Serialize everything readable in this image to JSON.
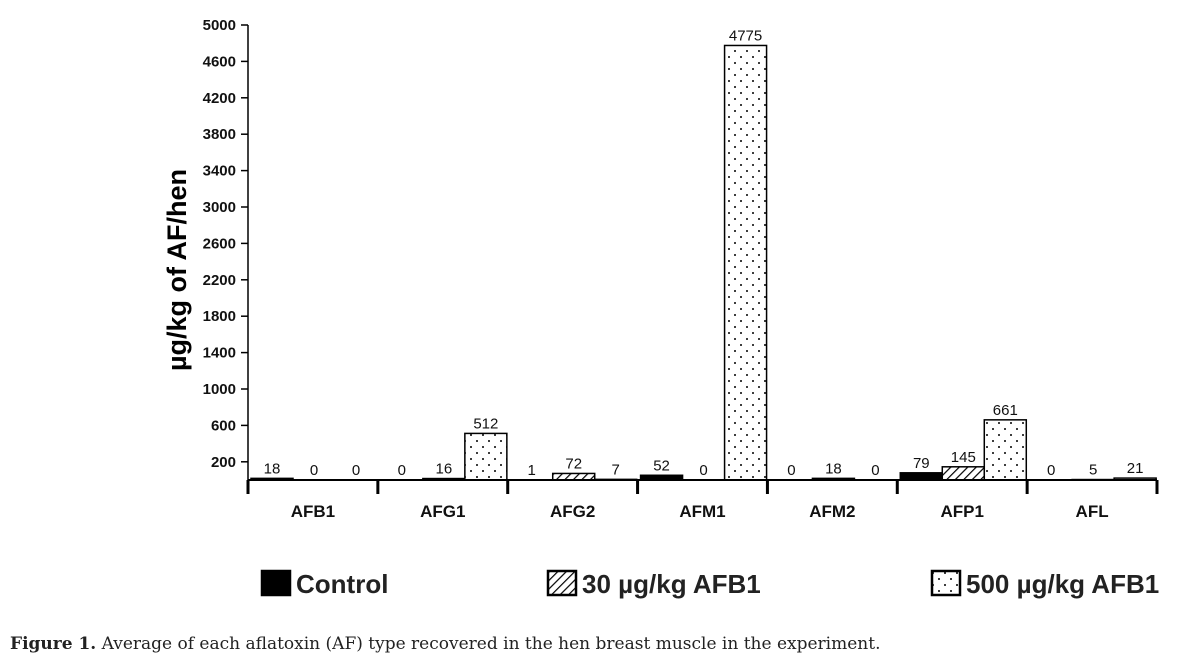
{
  "chart_data": {
    "type": "bar",
    "ylabel": "µg/kg of AF/hen",
    "xlabel": "",
    "ylim": [
      0,
      5000
    ],
    "yticks": [
      200,
      600,
      1000,
      1400,
      1800,
      2200,
      2600,
      3000,
      3400,
      3800,
      4200,
      4600,
      5000
    ],
    "categories": [
      "AFB1",
      "AFG1",
      "AFG2",
      "AFM1",
      "AFM2",
      "AFP1",
      "AFL"
    ],
    "series": [
      {
        "name": "Control",
        "pattern": "solid",
        "values": [
          18,
          0,
          1,
          52,
          0,
          79,
          0
        ]
      },
      {
        "name": "30 µg/kg AFB1",
        "pattern": "hatch",
        "values": [
          0,
          16,
          72,
          0,
          18,
          145,
          5
        ]
      },
      {
        "name": "500 µg/kg AFB1",
        "pattern": "dots",
        "values": [
          0,
          512,
          7,
          4775,
          0,
          661,
          21
        ]
      }
    ],
    "legend_position": "bottom",
    "grid": false
  },
  "caption": {
    "label": "Figure 1.",
    "text": " Average of each aflatoxin (AF) type recovered in the hen breast muscle in the experiment."
  }
}
